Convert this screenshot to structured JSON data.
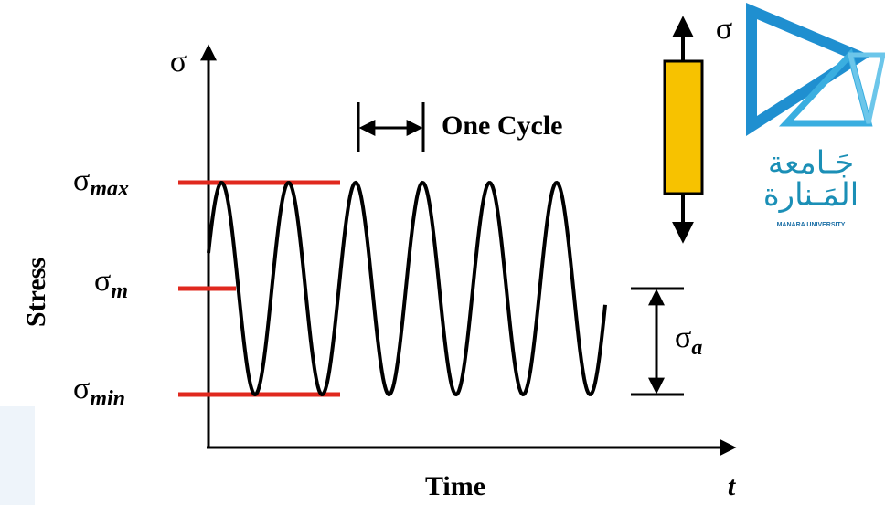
{
  "diagram": {
    "y_axis": {
      "symbol": "σ",
      "label": "Stress"
    },
    "x_axis": {
      "label": "Time",
      "symbol": "t"
    },
    "levels": {
      "max": {
        "symbol": "σ",
        "subscript": "max"
      },
      "mean": {
        "symbol": "σ",
        "subscript": "m"
      },
      "min": {
        "symbol": "σ",
        "subscript": "min"
      }
    },
    "cycle_label": "One Cycle",
    "amplitude": {
      "symbol": "σ",
      "subscript": "a"
    },
    "specimen_label": "σ",
    "logo": {
      "line1": "جَـامعة",
      "line2": "المَـنارة",
      "line3": "MANARA UNIVERSITY"
    }
  }
}
